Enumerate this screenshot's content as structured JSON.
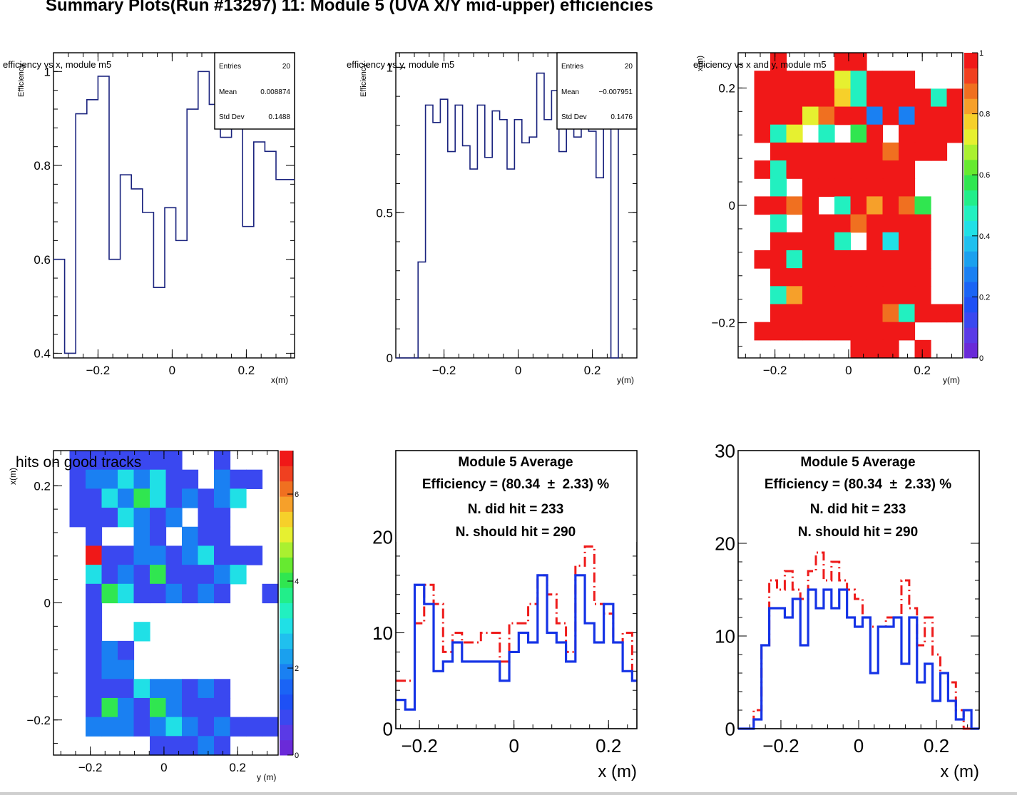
{
  "title": "Summary Plots(Run #13297) 11: Module 5 (UVA X/Y mid-upper) efficiencies",
  "colors": {
    "hist_line": "#1a237e",
    "did_hit": "#1533e6",
    "should_hit": "#ee1b1b",
    "palette": [
      "#6a2ad8",
      "#5a3ae6",
      "#3a48f0",
      "#1e50f5",
      "#1a64f5",
      "#1a80f2",
      "#1aa0ee",
      "#20c0ee",
      "#20e0e6",
      "#22f0c0",
      "#22ee8a",
      "#30e650",
      "#66ea30",
      "#aaf030",
      "#e6f030",
      "#f6d02a",
      "#f6a02a",
      "#f07020",
      "#f04020",
      "#f01818"
    ]
  },
  "panels": {
    "eff_x": {
      "title": "efficiency vs x, module m5",
      "ylabel": "Efficiency",
      "xlabel": "x(m)",
      "stats": {
        "entries_label": "Entries",
        "entries": "20",
        "mean_label": "Mean",
        "mean": "0.008874",
        "std_label": "Std Dev",
        "std": "0.1488"
      }
    },
    "eff_y": {
      "title": "efficiency vs y, module m5",
      "ylabel": "Efficiency",
      "xlabel": "y(m)",
      "stats": {
        "entries_label": "Entries",
        "entries": "20",
        "mean_label": "Mean",
        "mean": "−0.007951",
        "std_label": "Std Dev",
        "std": "0.1476"
      }
    },
    "eff_xy": {
      "title": "efficiency vs x and y, module m5",
      "ylabel": "x(m)",
      "xlabel": "y(m)"
    },
    "hits_xy": {
      "title": "hits on good tracks",
      "ylabel": "x(m)",
      "xlabel": "y (m)"
    },
    "avg_left": {
      "xlabel": "x (m)",
      "lines": [
        "Module 5 Average",
        "Efficiency = (80.34  ±  2.33) %",
        "N. did hit = 233",
        "N. should hit = 290"
      ]
    },
    "avg_right": {
      "xlabel": "x (m)",
      "lines": [
        "Module 5 Average",
        "Efficiency = (80.34  ±  2.33) %",
        "N. did hit = 233",
        "N. should hit = 290"
      ]
    }
  },
  "chart_data": [
    {
      "type": "step",
      "title": "efficiency vs x, module m5",
      "xlabel": "x(m)",
      "ylabel": "Efficiency",
      "xlim": [
        -0.32,
        0.33
      ],
      "ylim": [
        0.39,
        1.04
      ],
      "xticks": [
        "-0.2",
        "0",
        "0.2"
      ],
      "yticks": [
        "0.4",
        "0.6",
        "0.8",
        "1"
      ],
      "bin_edges": [
        -0.32,
        -0.29,
        -0.26,
        -0.23,
        -0.2,
        -0.17,
        -0.14,
        -0.11,
        -0.08,
        -0.05,
        -0.02,
        0.01,
        0.04,
        0.07,
        0.1,
        0.13,
        0.16,
        0.19,
        0.22,
        0.25,
        0.28,
        0.33
      ],
      "values": [
        0.6,
        0.4,
        0.91,
        0.94,
        0.99,
        0.6,
        0.78,
        0.75,
        0.7,
        0.54,
        0.71,
        0.64,
        0.92,
        1.0,
        0.93,
        0.86,
        0.88,
        0.67,
        0.85,
        0.83,
        0.77
      ],
      "stats": {
        "entries": 20,
        "mean": 0.008874,
        "std_dev": 0.1488
      }
    },
    {
      "type": "step",
      "title": "efficiency vs y, module m5",
      "xlabel": "y(m)",
      "ylabel": "Efficiency",
      "xlim": [
        -0.33,
        0.32
      ],
      "ylim": [
        0,
        1.05
      ],
      "xticks": [
        "-0.2",
        "0",
        "0.2"
      ],
      "yticks": [
        "0",
        "0.5",
        "1"
      ],
      "bin_edges": [
        -0.33,
        -0.27,
        -0.25,
        -0.23,
        -0.21,
        -0.19,
        -0.17,
        -0.15,
        -0.13,
        -0.11,
        -0.09,
        -0.07,
        -0.05,
        -0.03,
        -0.01,
        0.01,
        0.03,
        0.05,
        0.07,
        0.09,
        0.11,
        0.13,
        0.15,
        0.17,
        0.19,
        0.21,
        0.23,
        0.25,
        0.27,
        0.32
      ],
      "values": [
        0,
        0.33,
        0.87,
        0.81,
        0.89,
        0.71,
        0.87,
        0.73,
        0.65,
        0.87,
        0.69,
        0.85,
        0.82,
        0.65,
        0.82,
        0.74,
        0.76,
        0.98,
        0.82,
        0.92,
        0.71,
        0.84,
        0.76,
        0.84,
        0.78,
        0.62,
        0.88,
        0,
        1.0
      ],
      "stats": {
        "entries": 20,
        "mean": -0.007951,
        "std_dev": 0.1476
      }
    },
    {
      "type": "heatmap",
      "title": "efficiency vs x and y, module m5",
      "xlabel": "y(m)",
      "ylabel": "x(m)",
      "xlim": [
        -0.3,
        0.31
      ],
      "ylim": [
        -0.26,
        0.26
      ],
      "xticks": [
        "-0.2",
        "0",
        "0.2"
      ],
      "yticks": [
        "-0.2",
        "0",
        "0.2"
      ],
      "zlim": [
        0,
        1
      ],
      "zticks": [
        "0",
        "0.2",
        "0.4",
        "0.6",
        "0.8",
        "1"
      ],
      "null_value": -1,
      "cell_order": "rows from top (x high) to bottom, columns from left (y low) to right",
      "z": [
        [
          -1,
          -1,
          1,
          -1,
          -1,
          -1,
          1,
          1,
          -1,
          -1,
          -1,
          -1,
          -1,
          -1
        ],
        [
          -1,
          1,
          1,
          1,
          1,
          1,
          0.75,
          0.5,
          1,
          1,
          1,
          -1,
          -1,
          -1
        ],
        [
          -1,
          1,
          1,
          1,
          1,
          1,
          0.8,
          0.5,
          1,
          1,
          1,
          1,
          0.5,
          1
        ],
        [
          -1,
          1,
          1,
          1,
          0.75,
          0.9,
          1,
          1,
          0.3,
          1,
          0.3,
          1,
          1,
          1
        ],
        [
          -1,
          1,
          0.5,
          0.75,
          -1,
          0.5,
          -1,
          0.6,
          1,
          -1,
          1,
          1,
          1,
          1
        ],
        [
          -1,
          -1,
          1,
          1,
          1,
          1,
          1,
          1,
          1,
          0.9,
          1,
          1,
          1,
          -1
        ],
        [
          -1,
          1,
          0.5,
          1,
          1,
          1,
          1,
          1,
          1,
          1,
          1,
          -1,
          -1,
          -1
        ],
        [
          -1,
          -1,
          0.5,
          -1,
          1,
          1,
          1,
          1,
          1,
          1,
          1,
          -1,
          -1,
          -1
        ],
        [
          -1,
          1,
          1,
          0.9,
          1,
          -1,
          0.5,
          1,
          0.85,
          1,
          0.9,
          0.6,
          -1,
          -1
        ],
        [
          -1,
          -1,
          0.5,
          -1,
          1,
          1,
          1,
          0.9,
          1,
          1,
          1,
          1,
          -1,
          -1
        ],
        [
          -1,
          -1,
          1,
          1,
          1,
          1,
          0.5,
          -1,
          1,
          0.45,
          1,
          1,
          -1,
          -1
        ],
        [
          -1,
          1,
          1,
          0.5,
          1,
          1,
          1,
          1,
          1,
          1,
          1,
          1,
          -1,
          -1
        ],
        [
          -1,
          -1,
          1,
          1,
          1,
          1,
          1,
          1,
          1,
          1,
          1,
          1,
          -1,
          -1
        ],
        [
          -1,
          -1,
          0.5,
          0.85,
          1,
          1,
          1,
          1,
          1,
          1,
          1,
          1,
          -1,
          -1
        ],
        [
          -1,
          -1,
          1,
          1,
          1,
          1,
          1,
          1,
          1,
          0.9,
          0.5,
          1,
          1,
          1
        ],
        [
          -1,
          1,
          1,
          1,
          1,
          1,
          1,
          1,
          1,
          1,
          1,
          -1,
          -1,
          -1
        ],
        [
          -1,
          -1,
          -1,
          -1,
          -1,
          -1,
          -1,
          1,
          1,
          1,
          -1,
          1,
          -1,
          -1
        ]
      ]
    },
    {
      "type": "heatmap",
      "title": "hits on good tracks",
      "xlabel": "y (m)",
      "ylabel": "x(m)",
      "xlim": [
        -0.3,
        0.31
      ],
      "ylim": [
        -0.26,
        0.26
      ],
      "xticks": [
        "-0.2",
        "0",
        "0.2"
      ],
      "yticks": [
        "-0.2",
        "0",
        "0.2"
      ],
      "zlim": [
        0,
        7
      ],
      "zticks": [
        "0",
        "2",
        "4",
        "6"
      ],
      "null_value": -1,
      "cell_order": "rows from top (x high) to bottom, columns from left (y low) to right",
      "z": [
        [
          -1,
          1,
          1,
          1,
          1,
          1,
          1,
          1,
          -1,
          -1,
          1,
          -1,
          -1,
          -1
        ],
        [
          -1,
          1,
          2,
          2,
          3,
          2,
          3,
          1,
          1,
          -1,
          2,
          1,
          1,
          -1
        ],
        [
          -1,
          1,
          1,
          3,
          2,
          4,
          3,
          1,
          2,
          1,
          2,
          3,
          -1,
          -1
        ],
        [
          -1,
          1,
          1,
          1,
          3,
          2,
          1,
          2,
          -1,
          1,
          1,
          -1,
          -1,
          -1
        ],
        [
          -1,
          -1,
          1,
          -1,
          -1,
          2,
          1,
          -1,
          2,
          1,
          1,
          -1,
          -1,
          -1
        ],
        [
          -1,
          -1,
          7,
          1,
          1,
          2,
          2,
          1,
          2,
          3,
          1,
          1,
          1,
          -1
        ],
        [
          -1,
          -1,
          3,
          1,
          2,
          1,
          4,
          1,
          1,
          1,
          2,
          3,
          -1,
          -1
        ],
        [
          -1,
          -1,
          1,
          4,
          3,
          1,
          1,
          2,
          1,
          2,
          1,
          -1,
          -1,
          1
        ],
        [
          -1,
          -1,
          1,
          -1,
          -1,
          -1,
          -1,
          -1,
          -1,
          -1,
          -1,
          -1,
          -1,
          -1
        ],
        [
          -1,
          -1,
          1,
          -1,
          -1,
          3,
          -1,
          -1,
          -1,
          -1,
          -1,
          -1,
          -1,
          -1
        ],
        [
          -1,
          -1,
          1,
          2,
          1,
          -1,
          -1,
          -1,
          -1,
          -1,
          -1,
          -1,
          -1,
          -1
        ],
        [
          -1,
          -1,
          1,
          2,
          2,
          -1,
          -1,
          -1,
          -1,
          -1,
          -1,
          -1,
          -1,
          -1
        ],
        [
          -1,
          -1,
          1,
          1,
          1,
          3,
          2,
          2,
          1,
          2,
          1,
          -1,
          -1,
          -1
        ],
        [
          -1,
          -1,
          1,
          4,
          2,
          1,
          4,
          2,
          1,
          1,
          1,
          -1,
          -1,
          -1
        ],
        [
          -1,
          -1,
          2,
          2,
          2,
          1,
          2,
          3,
          2,
          1,
          2,
          1,
          1,
          1
        ],
        [
          -1,
          -1,
          -1,
          -1,
          -1,
          -1,
          1,
          1,
          1,
          2,
          1,
          -1,
          -1,
          -1
        ]
      ]
    },
    {
      "type": "step",
      "title": "Module 5 Average",
      "xlabel": "x (m)",
      "ylabel": "",
      "xlim": [
        -0.25,
        0.26
      ],
      "ylim": [
        0,
        29
      ],
      "xticks": [
        "-0.2",
        "0",
        "0.2"
      ],
      "yticks": [
        "0",
        "10",
        "20"
      ],
      "bin_edges": [
        -0.25,
        -0.23,
        -0.21,
        -0.19,
        -0.17,
        -0.15,
        -0.13,
        -0.11,
        -0.09,
        -0.07,
        -0.05,
        -0.03,
        -0.01,
        0.01,
        0.03,
        0.05,
        0.07,
        0.09,
        0.11,
        0.13,
        0.15,
        0.17,
        0.19,
        0.21,
        0.23,
        0.25,
        0.26
      ],
      "series": [
        {
          "name": "N. should hit",
          "values": [
            5,
            5,
            11,
            15,
            13,
            8,
            10,
            9,
            9,
            10,
            10,
            7,
            11,
            11,
            13,
            16,
            14,
            11,
            8,
            17,
            19,
            13,
            12,
            9,
            10,
            5
          ]
        },
        {
          "name": "N. did hit",
          "values": [
            3,
            2,
            15,
            13,
            6,
            7,
            9,
            7,
            7,
            7,
            7,
            5,
            8,
            10,
            9,
            16,
            10,
            9,
            7,
            16,
            11,
            9,
            13,
            9,
            6,
            5
          ]
        }
      ]
    },
    {
      "type": "step",
      "title": "Module 5 Average",
      "xlabel": "x (m)",
      "ylabel": "",
      "xlim": [
        -0.31,
        0.31
      ],
      "ylim": [
        0,
        30
      ],
      "xticks": [
        "-0.2",
        "0",
        "0.2"
      ],
      "yticks": [
        "0",
        "10",
        "20",
        "30"
      ],
      "bin_edges": [
        -0.31,
        -0.29,
        -0.27,
        -0.25,
        -0.23,
        -0.21,
        -0.19,
        -0.17,
        -0.15,
        -0.13,
        -0.11,
        -0.09,
        -0.07,
        -0.05,
        -0.03,
        -0.01,
        0.01,
        0.03,
        0.05,
        0.07,
        0.09,
        0.11,
        0.13,
        0.15,
        0.17,
        0.19,
        0.21,
        0.23,
        0.25,
        0.27,
        0.29,
        0.31
      ],
      "series": [
        {
          "name": "N. should hit",
          "values": [
            0,
            0,
            2,
            9,
            16,
            15,
            17,
            15,
            14,
            17,
            19,
            16,
            18,
            16,
            15,
            14,
            12,
            11,
            11,
            12,
            12,
            16,
            13,
            9,
            12,
            8,
            6,
            5,
            2,
            0,
            0
          ]
        },
        {
          "name": "N. did hit",
          "values": [
            0,
            0,
            1,
            9,
            13,
            13,
            12,
            14,
            9,
            15,
            13,
            15,
            13,
            15,
            12,
            11,
            12,
            6,
            11,
            11,
            12,
            7,
            12,
            5,
            7,
            3,
            6,
            3,
            1,
            2,
            0
          ]
        }
      ]
    }
  ]
}
